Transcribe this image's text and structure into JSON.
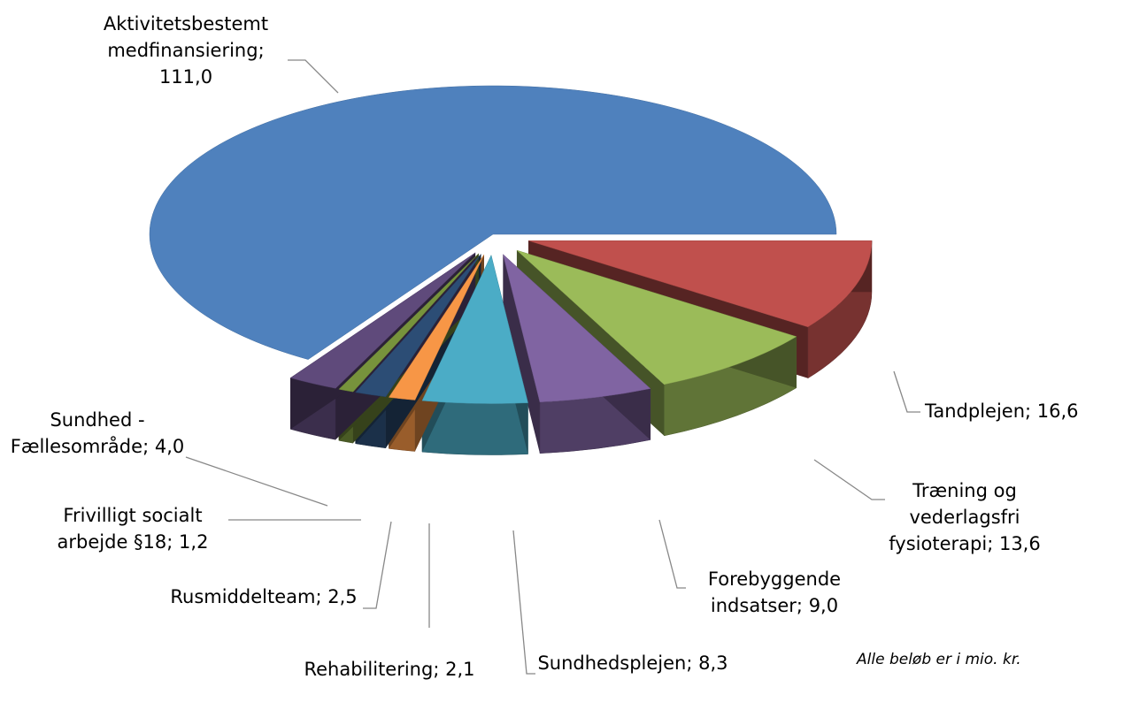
{
  "chart_data": {
    "type": "pie3d",
    "categories": [
      "Aktivitetsbestemt medfinansiering",
      "Tandplejen",
      "Træning og vederlagsfri fysioterapi",
      "Forebyggende indsatser",
      "Sundhedsplejen",
      "Rehabilitering",
      "Rusmiddelteam",
      "Frivilligt socialt arbejde §18",
      "Sundhed - Fællesområde"
    ],
    "values": [
      111.0,
      16.6,
      13.6,
      9.0,
      8.3,
      2.1,
      2.5,
      1.2,
      4.0
    ],
    "value_labels": [
      "111,0",
      "16,6",
      "13,6",
      "9,0",
      "8,3",
      "2,1",
      "2,5",
      "1,2",
      "4,0"
    ],
    "label_separator": "; ",
    "colors": [
      "#4f81bd",
      "#c0504d",
      "#9bbb59",
      "#8064a2",
      "#4bacc6",
      "#f79646",
      "#2c4d75",
      "#77933c",
      "#5f4a7b"
    ],
    "note": "Alle beløb er i mio. kr."
  }
}
